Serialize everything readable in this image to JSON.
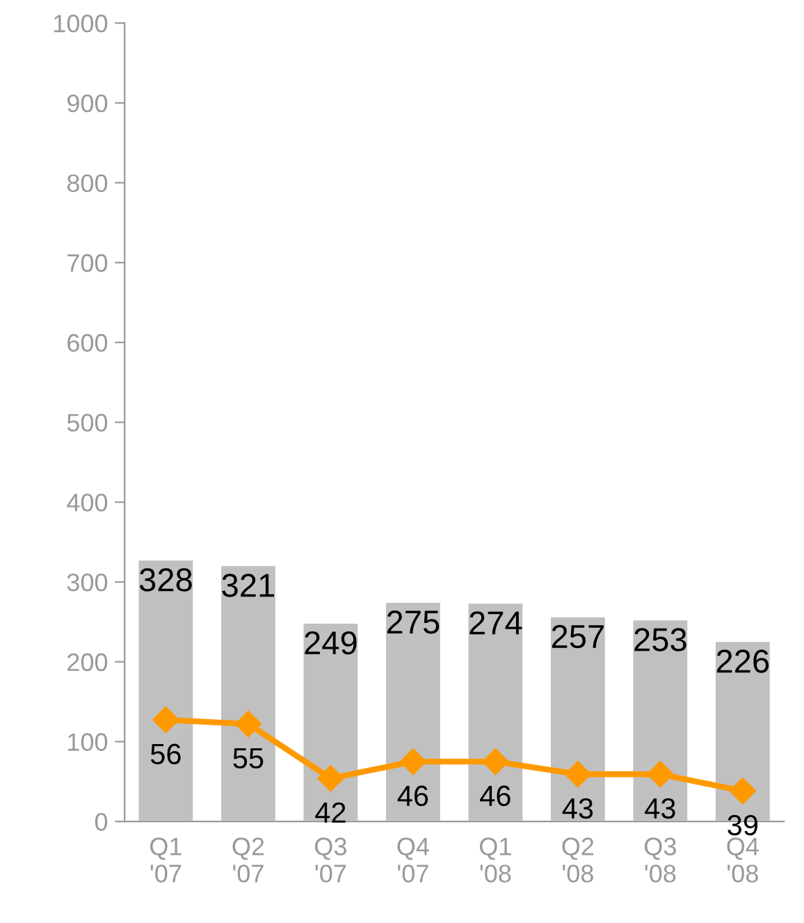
{
  "chart_data": {
    "type": "bar",
    "categories": [
      "Q1\n'07",
      "Q2\n'07",
      "Q3\n'07",
      "Q4\n'07",
      "Q1\n'08",
      "Q2\n'08",
      "Q3\n'08",
      "Q4\n'08"
    ],
    "series": [
      {
        "color": "#c0c0c0",
        "values": [
          328,
          321,
          249,
          275,
          274,
          257,
          253,
          226
        ]
      },
      {
        "type": "line",
        "axis": "y2",
        "color": "#ff9900",
        "marker": "diamond",
        "values": [
          56,
          55,
          42,
          46,
          46,
          43,
          43,
          39
        ]
      }
    ],
    "ylim": [
      0,
      1000
    ],
    "yticks": [
      0,
      100,
      200,
      300,
      400,
      500,
      600,
      700,
      800,
      900,
      1000
    ],
    "y2lim": [
      31.7,
      222.5
    ],
    "data_labels": true,
    "grid": false
  }
}
